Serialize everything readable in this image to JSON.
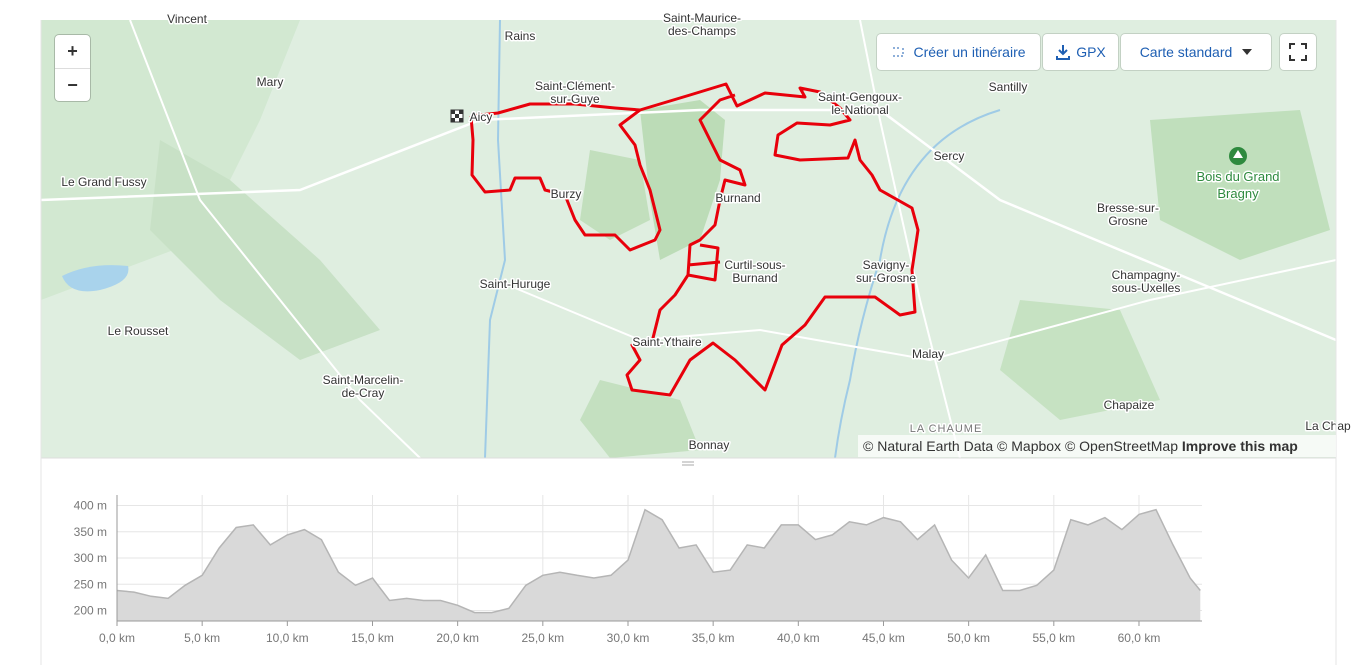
{
  "map": {
    "controls": {
      "zoom_in": "+",
      "zoom_out": "−",
      "create_route": "Créer un itinéraire",
      "gpx": "GPX",
      "map_style": "Carte standard"
    },
    "places": [
      {
        "lines": [
          "Vincent"
        ]
      },
      {
        "lines": [
          "Rains"
        ]
      },
      {
        "lines": [
          "Saint-Maurice-",
          "des-Champs"
        ]
      },
      {
        "lines": [
          "Mary"
        ]
      },
      {
        "lines": [
          "Saint-Clément-",
          "sur-Guye"
        ]
      },
      {
        "lines": [
          "Saint-Gengoux-",
          "le-National"
        ]
      },
      {
        "lines": [
          "Santilly"
        ]
      },
      {
        "lines": [
          "Aicy"
        ]
      },
      {
        "lines": [
          "Le Grand Fussy"
        ]
      },
      {
        "lines": [
          "Sercy"
        ]
      },
      {
        "lines": [
          "Burzy"
        ]
      },
      {
        "lines": [
          "Burnand"
        ]
      },
      {
        "lines": [
          "Bresse-sur-",
          "Grosne"
        ]
      },
      {
        "lines": [
          "Curtil-sous-",
          "Burnand"
        ]
      },
      {
        "lines": [
          "Savigny-",
          "sur-Grosne"
        ]
      },
      {
        "lines": [
          "Champagny-",
          "sous-Uxelles"
        ]
      },
      {
        "lines": [
          "Saint-Huruge"
        ]
      },
      {
        "lines": [
          "Le Rousset"
        ]
      },
      {
        "lines": [
          "Saint-Ythaire"
        ]
      },
      {
        "lines": [
          "Malay"
        ]
      },
      {
        "lines": [
          "Saint-Marcelin-",
          "de-Cray"
        ]
      },
      {
        "lines": [
          "Chapaize"
        ]
      },
      {
        "lines": [
          "LA CHAUME"
        ]
      },
      {
        "lines": [
          "La Chap"
        ]
      },
      {
        "lines": [
          "Bonnay"
        ]
      }
    ],
    "forest_label": [
      "Bois du Grand",
      "Bragny"
    ],
    "attribution": {
      "text": "© Natural Earth Data © Mapbox © OpenStreetMap",
      "link": "Improve this map"
    }
  },
  "elevation": {
    "xlim": [
      0,
      63.7
    ],
    "ylim": [
      180,
      420
    ],
    "xticks": [
      {
        "value": 0,
        "label": "0,0 km"
      },
      {
        "value": 5,
        "label": "5,0 km"
      },
      {
        "value": 10,
        "label": "10,0 km"
      },
      {
        "value": 15,
        "label": "15,0 km"
      },
      {
        "value": 20,
        "label": "20,0 km"
      },
      {
        "value": 25,
        "label": "25,0 km"
      },
      {
        "value": 30,
        "label": "30,0 km"
      },
      {
        "value": 35,
        "label": "35,0 km"
      },
      {
        "value": 40,
        "label": "40,0 km"
      },
      {
        "value": 45,
        "label": "45,0 km"
      },
      {
        "value": 50,
        "label": "50,0 km"
      },
      {
        "value": 55,
        "label": "55,0 km"
      },
      {
        "value": 60,
        "label": "60,0 km"
      }
    ],
    "yticks": [
      {
        "value": 200,
        "label": "200 m"
      },
      {
        "value": 250,
        "label": "250 m"
      },
      {
        "value": 300,
        "label": "300 m"
      },
      {
        "value": 350,
        "label": "350 m"
      },
      {
        "value": 400,
        "label": "400 m"
      }
    ],
    "distance_km": [
      0,
      1,
      2,
      3,
      4,
      5,
      6,
      7,
      8,
      9,
      10,
      11,
      12,
      13,
      14,
      15,
      16,
      17,
      18,
      19,
      20,
      21,
      22,
      23,
      24,
      25,
      26,
      27,
      28,
      29,
      30,
      31,
      32,
      33,
      34,
      35,
      36,
      37,
      38,
      39,
      40,
      41,
      42,
      43,
      44,
      45,
      46,
      47,
      48,
      49,
      50,
      51,
      52,
      53,
      54,
      55,
      56,
      57,
      58,
      59,
      60,
      61,
      62,
      63,
      63.6
    ],
    "elevation_m": [
      238,
      235,
      227,
      223,
      248,
      267,
      319,
      358,
      363,
      325,
      344,
      354,
      335,
      273,
      248,
      262,
      219,
      223,
      219,
      219,
      210,
      196,
      196,
      204,
      248,
      267,
      273,
      267,
      262,
      267,
      296,
      392,
      373,
      319,
      325,
      273,
      277,
      325,
      319,
      363,
      363,
      335,
      344,
      369,
      363,
      377,
      369,
      335,
      363,
      296,
      262,
      306,
      238,
      238,
      248,
      277,
      373,
      363,
      377,
      354,
      383,
      392,
      325,
      262,
      238
    ]
  }
}
